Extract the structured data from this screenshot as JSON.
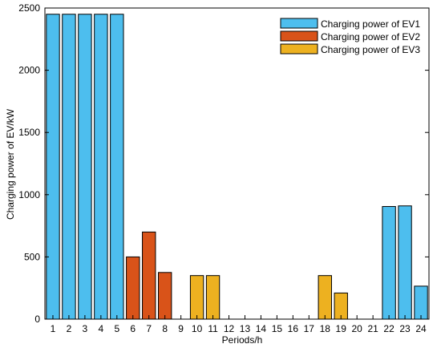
{
  "chart_data": {
    "type": "bar",
    "xlabel": "Periods/h",
    "ylabel": "Charging power of EV/kW",
    "ylim": [
      0,
      2500
    ],
    "yticks": [
      0,
      500,
      1000,
      1500,
      2000,
      2500
    ],
    "categories": [
      "1",
      "2",
      "3",
      "4",
      "5",
      "6",
      "7",
      "8",
      "9",
      "10",
      "11",
      "12",
      "13",
      "14",
      "15",
      "16",
      "17",
      "18",
      "19",
      "20",
      "21",
      "22",
      "23",
      "24"
    ],
    "series": [
      {
        "name": "Charging power of EV1",
        "color": "#4dbeee",
        "values": [
          2450,
          2450,
          2450,
          2450,
          2450,
          0,
          0,
          0,
          0,
          0,
          0,
          0,
          0,
          0,
          0,
          0,
          0,
          0,
          0,
          0,
          0,
          905,
          910,
          265
        ]
      },
      {
        "name": "Charging power of EV2",
        "color": "#d95319",
        "values": [
          0,
          0,
          0,
          0,
          0,
          500,
          700,
          375,
          0,
          0,
          0,
          0,
          0,
          0,
          0,
          0,
          0,
          0,
          0,
          0,
          0,
          0,
          0,
          0
        ]
      },
      {
        "name": "Charging power of EV3",
        "color": "#edb120",
        "values": [
          0,
          0,
          0,
          0,
          0,
          0,
          0,
          0,
          0,
          350,
          350,
          0,
          0,
          0,
          0,
          0,
          0,
          350,
          210,
          0,
          0,
          0,
          0,
          0
        ]
      }
    ],
    "legend_position": "top-right",
    "grid": false
  }
}
